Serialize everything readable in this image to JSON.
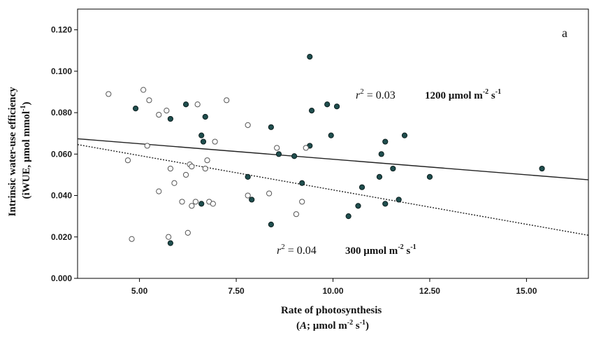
{
  "chart_data": {
    "type": "scatter",
    "panel_label": "a",
    "xlabel_line1": "Rate of photosynthesis",
    "xlabel_line2_italic": "A",
    "xlabel_line2_rest": "; µmol m",
    "xlabel_line2_exp1": "-2",
    "xlabel_line2_mid": " s",
    "xlabel_line2_exp2": "-1",
    "xlabel_line2_close": ")",
    "ylabel_line1": "Intrinsic water-use efficiency",
    "ylabel_line2": "(iWUE, µmol mmol",
    "ylabel_line2_exp": "-1",
    "ylabel_line2_close": ")",
    "xlim": [
      3.4,
      16.6
    ],
    "ylim": [
      0.0,
      0.13
    ],
    "xticks": [
      5.0,
      7.5,
      10.0,
      12.5,
      15.0
    ],
    "xtick_labels": [
      "5.00",
      "7.50",
      "10.00",
      "12.50",
      "15.00"
    ],
    "yticks": [
      0.0,
      0.02,
      0.04,
      0.06,
      0.08,
      0.1,
      0.12
    ],
    "ytick_labels": [
      "0.000",
      "0.020",
      "0.040",
      "0.060",
      "0.080",
      "0.100",
      "0.120"
    ],
    "series": [
      {
        "name": "1200 µmol m-2 s-1",
        "marker": "filled",
        "color": "#1f4e4e",
        "fit": {
          "style": "solid",
          "x": [
            3.4,
            16.6
          ],
          "y": [
            0.0674,
            0.0476
          ]
        },
        "r2": "0.03",
        "legend_main": "1200 µmol m",
        "legend_exp1": "-2",
        "legend_mid": " s",
        "legend_exp2": "-1",
        "points": [
          [
            4.9,
            0.082
          ],
          [
            5.8,
            0.077
          ],
          [
            6.2,
            0.084
          ],
          [
            6.6,
            0.069
          ],
          [
            6.65,
            0.066
          ],
          [
            6.7,
            0.078
          ],
          [
            6.6,
            0.036
          ],
          [
            5.8,
            0.017
          ],
          [
            7.8,
            0.049
          ],
          [
            7.9,
            0.038
          ],
          [
            8.4,
            0.073
          ],
          [
            8.4,
            0.026
          ],
          [
            8.6,
            0.06
          ],
          [
            9.0,
            0.059
          ],
          [
            9.2,
            0.046
          ],
          [
            9.4,
            0.107
          ],
          [
            9.45,
            0.081
          ],
          [
            9.4,
            0.064
          ],
          [
            9.85,
            0.084
          ],
          [
            10.1,
            0.083
          ],
          [
            9.95,
            0.069
          ],
          [
            10.75,
            0.044
          ],
          [
            10.4,
            0.03
          ],
          [
            10.65,
            0.035
          ],
          [
            11.2,
            0.049
          ],
          [
            11.25,
            0.06
          ],
          [
            11.35,
            0.066
          ],
          [
            11.55,
            0.053
          ],
          [
            11.35,
            0.036
          ],
          [
            11.7,
            0.038
          ],
          [
            11.85,
            0.069
          ],
          [
            12.5,
            0.049
          ],
          [
            15.4,
            0.053
          ]
        ]
      },
      {
        "name": "300 µmol m-2 s-1",
        "marker": "open",
        "color": "#555555",
        "fit": {
          "style": "dotted",
          "x": [
            3.4,
            16.6
          ],
          "y": [
            0.0646,
            0.0208
          ]
        },
        "r2": "0.04",
        "legend_main": "300 µmol m",
        "legend_exp1": "-2",
        "legend_mid": " s",
        "legend_exp2": "-1",
        "points": [
          [
            4.2,
            0.089
          ],
          [
            5.1,
            0.091
          ],
          [
            5.25,
            0.086
          ],
          [
            5.5,
            0.079
          ],
          [
            5.7,
            0.081
          ],
          [
            5.2,
            0.064
          ],
          [
            4.7,
            0.057
          ],
          [
            4.8,
            0.019
          ],
          [
            5.5,
            0.042
          ],
          [
            5.8,
            0.053
          ],
          [
            5.9,
            0.046
          ],
          [
            5.75,
            0.02
          ],
          [
            6.1,
            0.037
          ],
          [
            6.2,
            0.05
          ],
          [
            6.3,
            0.055
          ],
          [
            6.35,
            0.054
          ],
          [
            6.25,
            0.022
          ],
          [
            6.35,
            0.035
          ],
          [
            6.45,
            0.037
          ],
          [
            6.5,
            0.084
          ],
          [
            6.7,
            0.053
          ],
          [
            6.75,
            0.057
          ],
          [
            6.8,
            0.037
          ],
          [
            6.9,
            0.036
          ],
          [
            6.95,
            0.066
          ],
          [
            7.25,
            0.086
          ],
          [
            7.8,
            0.074
          ],
          [
            7.8,
            0.04
          ],
          [
            8.35,
            0.041
          ],
          [
            8.55,
            0.063
          ],
          [
            9.05,
            0.031
          ],
          [
            9.2,
            0.037
          ],
          [
            9.3,
            0.063
          ]
        ]
      }
    ]
  }
}
